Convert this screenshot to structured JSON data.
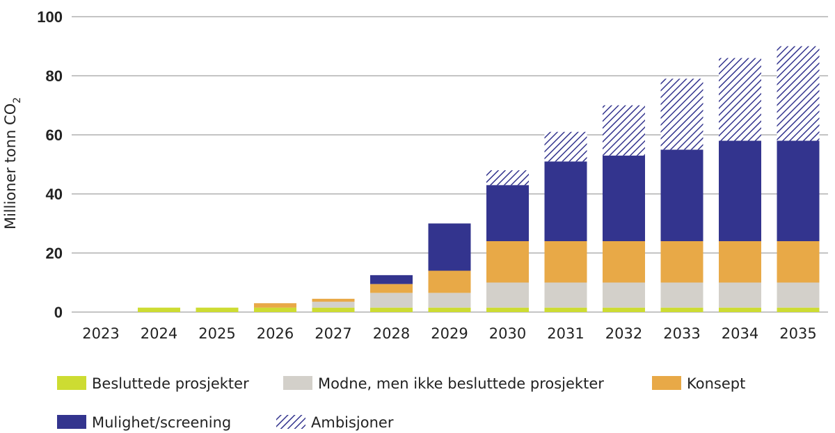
{
  "chart_data": {
    "type": "bar",
    "stacked": true,
    "title": "",
    "xlabel": "",
    "ylabel": "Millioner tonn CO",
    "ylabel_subscript": "2",
    "ylim": [
      0,
      100
    ],
    "yticks": [
      "0",
      "20",
      "40",
      "60",
      "80",
      "100"
    ],
    "ytick_values": [
      0,
      20,
      40,
      60,
      80,
      100
    ],
    "grid": true,
    "legend_position": "bottom",
    "categories": [
      "2023",
      "2024",
      "2025",
      "2026",
      "2027",
      "2028",
      "2029",
      "2030",
      "2031",
      "2032",
      "2033",
      "2034",
      "2035"
    ],
    "series": [
      {
        "name": "Besluttede prosjekter",
        "color": "#cddc32",
        "pattern": "solid",
        "values": [
          0,
          1.5,
          1.5,
          1.5,
          1.5,
          1.5,
          1.5,
          1.5,
          1.5,
          1.5,
          1.5,
          1.5,
          1.5
        ]
      },
      {
        "name": "Modne, men ikke besluttede prosjekter",
        "color": "#d3d0ca",
        "pattern": "solid",
        "values": [
          0,
          0,
          0,
          0,
          2,
          5,
          5,
          8.5,
          8.5,
          8.5,
          8.5,
          8.5,
          8.5
        ]
      },
      {
        "name": "Konsept",
        "color": "#e8a947",
        "pattern": "solid",
        "values": [
          0,
          0,
          0,
          1.5,
          1,
          3,
          7.5,
          14,
          14,
          14,
          14,
          14,
          14
        ]
      },
      {
        "name": "Mulighet/screening",
        "color": "#33348e",
        "pattern": "solid",
        "values": [
          0,
          0,
          0,
          0,
          0,
          3,
          16,
          19,
          27,
          29,
          31,
          34,
          34
        ]
      },
      {
        "name": "Ambisjoner",
        "color": "#33348e",
        "pattern": "hatch",
        "values": [
          0,
          0,
          0,
          0,
          0,
          0,
          0,
          5,
          10,
          17,
          24,
          28,
          32
        ]
      }
    ]
  }
}
